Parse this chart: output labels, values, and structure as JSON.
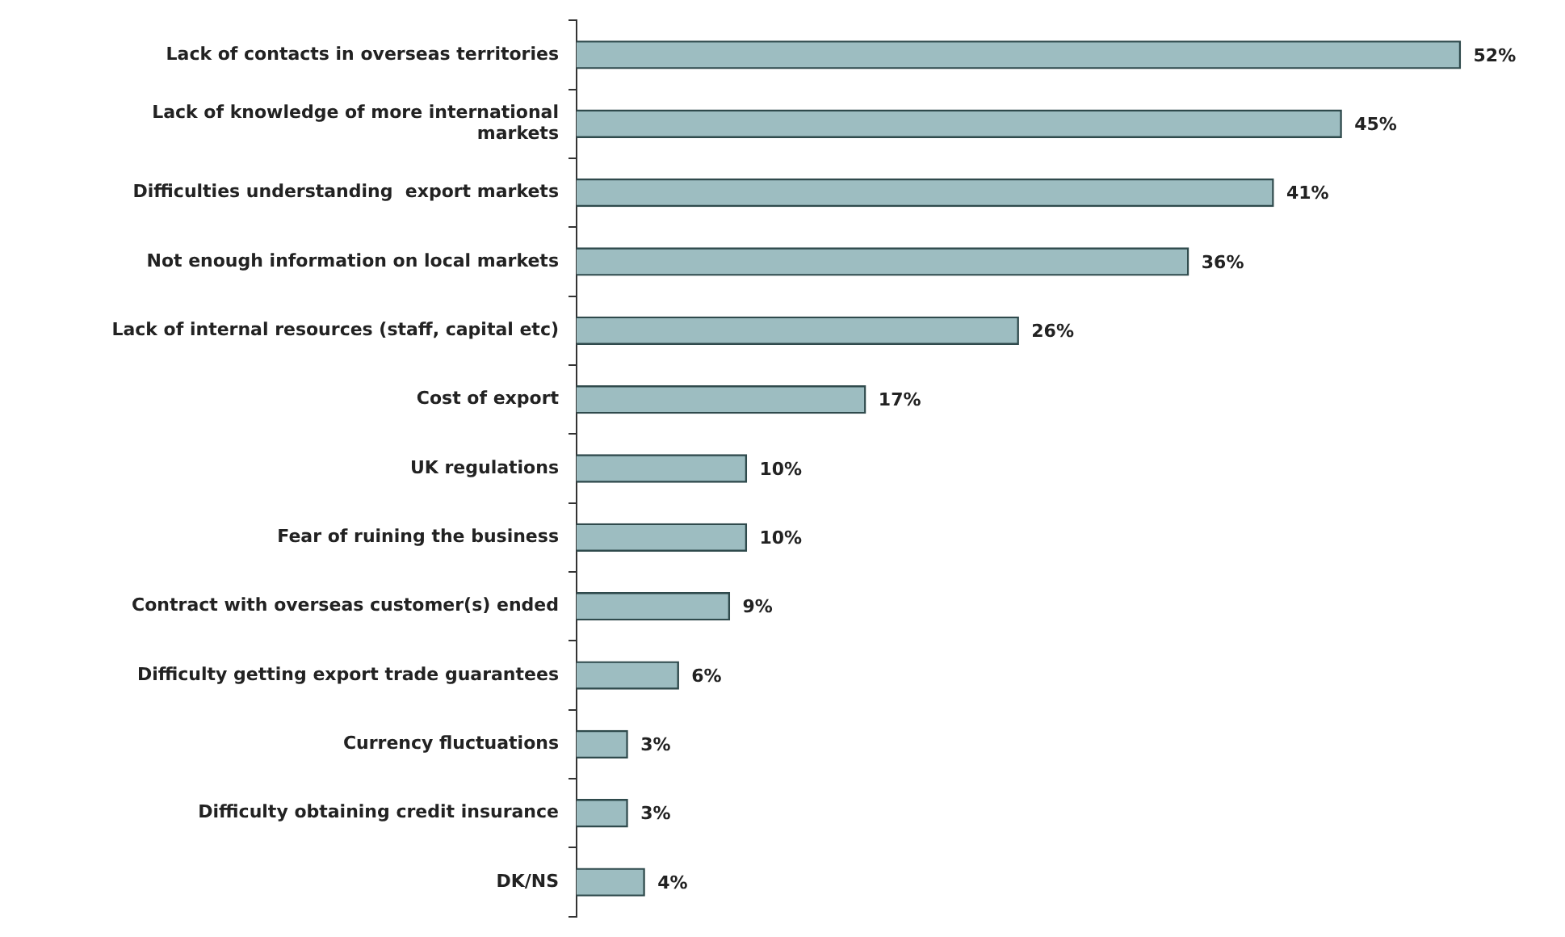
{
  "chart_data": {
    "type": "bar",
    "orientation": "horizontal",
    "color": "#9dbdc1",
    "categories": [
      "Lack of contacts in overseas territories",
      "Lack of knowledge of more international markets",
      "Difficulties understanding  export markets",
      "Not enough information on local markets",
      "Lack of internal resources (staff, capital etc)",
      "Cost of export",
      "UK regulations",
      "Fear of ruining the business",
      "Contract with overseas customer(s) ended",
      "Difficulty getting export trade guarantees",
      "Currency fluctuations",
      "Difficulty obtaining credit insurance",
      "DK/NS"
    ],
    "values": [
      52,
      45,
      41,
      36,
      26,
      17,
      10,
      10,
      9,
      6,
      3,
      3,
      4
    ],
    "value_labels": [
      "52%",
      "45%",
      "41%",
      "36%",
      "26%",
      "17%",
      "10%",
      "10%",
      "9%",
      "6%",
      "3%",
      "3%",
      "4%"
    ]
  }
}
